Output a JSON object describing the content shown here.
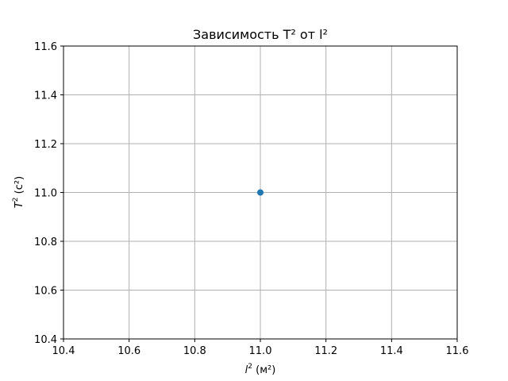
{
  "chart_data": {
    "type": "scatter",
    "title": "Зависимость T² от l²",
    "xlabel": {
      "symbol": "l",
      "sup": "2",
      "unit": " (м²)"
    },
    "ylabel": {
      "symbol": "T",
      "sup": "2",
      "unit": " (с²)"
    },
    "xlim": [
      10.4,
      11.6
    ],
    "ylim": [
      10.4,
      11.6
    ],
    "x_ticks": [
      10.4,
      10.6,
      10.8,
      11.0,
      11.2,
      11.4,
      11.6
    ],
    "y_ticks": [
      10.4,
      10.6,
      10.8,
      11.0,
      11.2,
      11.4,
      11.6
    ],
    "x_tick_labels": [
      "10.4",
      "10.6",
      "10.8",
      "11.0",
      "11.2",
      "11.4",
      "11.6"
    ],
    "y_tick_labels": [
      "10.4",
      "10.6",
      "10.8",
      "11.0",
      "11.2",
      "11.4",
      "11.6"
    ],
    "grid": true,
    "series": [
      {
        "color": "#1f77b4",
        "points": [
          {
            "x": 11.0,
            "y": 11.0
          }
        ]
      }
    ]
  }
}
